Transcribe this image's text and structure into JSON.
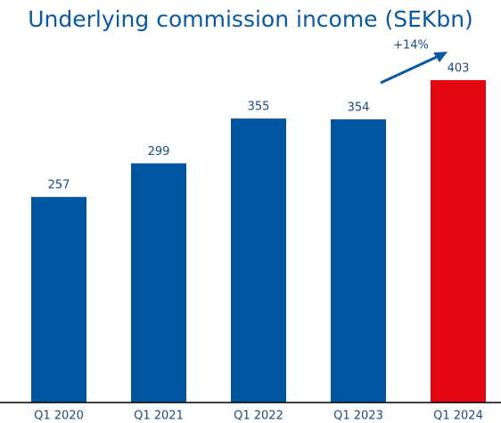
{
  "chart_data": {
    "type": "bar",
    "title": "Underlying commission income (SEKbn)",
    "categories": [
      "Q1 2020",
      "Q1 2021",
      "Q1 2022",
      "Q1 2023",
      "Q1 2024"
    ],
    "values": [
      257,
      299,
      355,
      354,
      403
    ],
    "colors": [
      "#00559f",
      "#00559f",
      "#00559f",
      "#00559f",
      "#e30613"
    ],
    "annotation": "+14%"
  }
}
